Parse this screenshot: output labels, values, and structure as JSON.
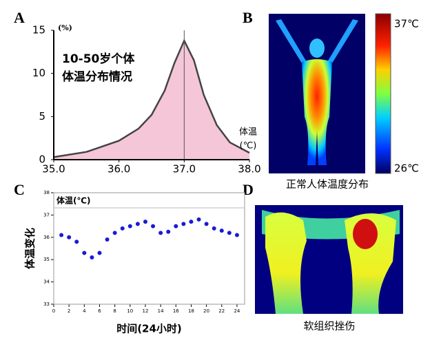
{
  "panels": {
    "labels": [
      "A",
      "B",
      "C",
      "D"
    ],
    "b_caption": "正常人体温度分布",
    "b_scale": [
      "37℃",
      "26℃"
    ],
    "d_caption": "软组织挫伤"
  },
  "chart_data": [
    {
      "type": "area",
      "y_unit": "(%)",
      "annotation": [
        "10-50岁个体",
        "体温分布情况"
      ],
      "xlabel": [
        "体温",
        "(℃)"
      ],
      "color": "#f4c6d8",
      "line_color": "#444",
      "x": [
        35.0,
        35.5,
        36.0,
        36.3,
        36.5,
        36.7,
        36.85,
        37.0,
        37.15,
        37.3,
        37.5,
        37.7,
        38.0
      ],
      "values": [
        0.3,
        0.9,
        2.2,
        3.6,
        5.2,
        8,
        11.2,
        13.8,
        11.5,
        7.5,
        4,
        2,
        0.8
      ],
      "marker_x": 37.0,
      "xlim": [
        35,
        38
      ],
      "xticks": [
        {
          "value": 35,
          "label": "35.0"
        },
        {
          "value": 36,
          "label": "36.0"
        },
        {
          "value": 37,
          "label": "37.0"
        },
        {
          "value": 38,
          "label": "38.0"
        }
      ],
      "ylim": [
        0,
        15
      ],
      "yticks": [
        0,
        5,
        10,
        15
      ]
    },
    {
      "type": "scatter",
      "title": "体温(℃)",
      "xlabel": "时间(24小时)",
      "ylabel": "体温变化",
      "color": "#1a1ad6",
      "x": [
        1,
        2,
        3,
        4,
        5,
        6,
        7,
        8,
        9,
        10,
        11,
        12,
        13,
        14,
        15,
        16,
        17,
        18,
        19,
        20,
        21,
        22,
        23,
        24
      ],
      "values": [
        36.1,
        36.0,
        35.8,
        35.3,
        35.1,
        35.3,
        35.9,
        36.2,
        36.4,
        36.5,
        36.6,
        36.7,
        36.5,
        36.2,
        36.25,
        36.5,
        36.6,
        36.7,
        36.8,
        36.6,
        36.4,
        36.3,
        36.2,
        36.1
      ],
      "xlim": [
        0,
        25
      ],
      "xticks": [
        0,
        2,
        4,
        6,
        8,
        10,
        12,
        14,
        16,
        18,
        20,
        22,
        24
      ],
      "ylim": [
        33,
        38
      ],
      "yticks": [
        33,
        34,
        35,
        36,
        37,
        38
      ]
    }
  ]
}
